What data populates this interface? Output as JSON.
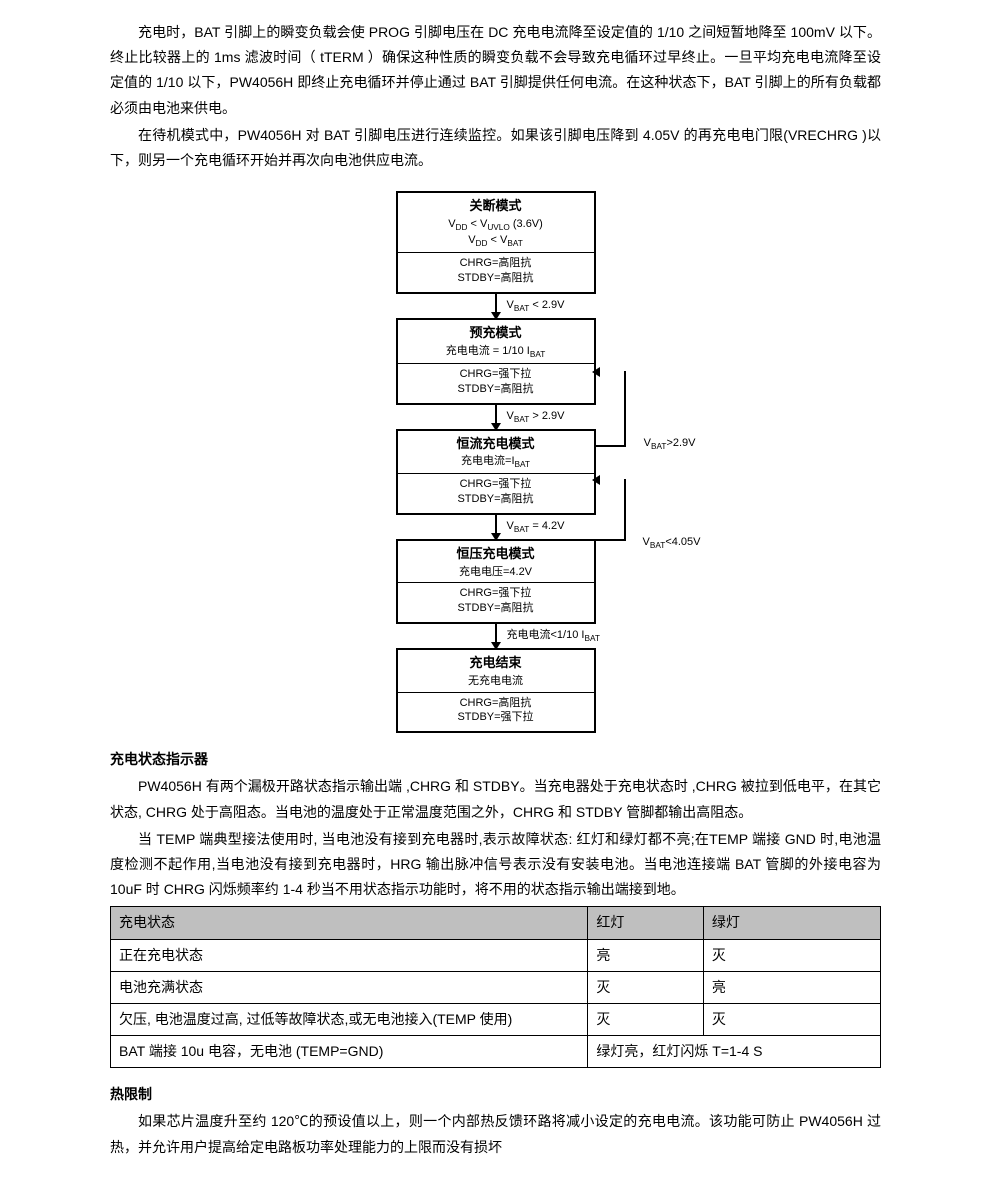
{
  "paragraphs": {
    "p1": "充电时，BAT 引脚上的瞬变负载会使 PROG 引脚电压在 DC 充电电流降至设定值的 1/10 之间短暂地降至 100mV 以下。终止比较器上的 1ms 滤波时间（ tTERM ）确保这种性质的瞬变负载不会导致充电循环过早终止。一旦平均充电电流降至设定值的 1/10 以下，PW4056H 即终止充电循环并停止通过 BAT 引脚提供任何电流。在这种状态下，BAT 引脚上的所有负载都必须由电池来供电。",
    "p2": "在待机模式中，PW4056H 对 BAT 引脚电压进行连续监控。如果该引脚电压降到 4.05V 的再充电电门限(VRECHRG )以下，则另一个充电循环开始并再次向电池供应电流。",
    "p3": "PW4056H 有两个漏极开路状态指示输出端 ,CHRG 和 STDBY。当充电器处于充电状态时 ,CHRG 被拉到低电平，在其它状态, CHRG 处于高阻态。当电池的温度处于正常温度范围之外，CHRG 和 STDBY 管脚都输出高阻态。",
    "p4": "当 TEMP 端典型接法使用时, 当电池没有接到充电器时,表示故障状态: 红灯和绿灯都不亮;在TEMP 端接 GND 时,电池温度检测不起作用,当电池没有接到充电器时，HRG 输出脉冲信号表示没有安装电池。当电池连接端 BAT 管脚的外接电容为 10uF 时 CHRG 闪烁频率约 1-4 秒当不用状态指示功能时，将不用的状态指示输出端接到地。",
    "p5": "如果芯片温度升至约 120℃的预设值以上，则一个内部热反馈环路将减小设定的充电电流。该功能可防止 PW4056H 过热，并允许用户提高给定电路板功率处理能力的上限而没有损坏"
  },
  "sections": {
    "s1": "充电状态指示器",
    "s2": "热限制"
  },
  "flowchart": {
    "nodes": [
      {
        "title": "关断模式",
        "lines_top": [
          "V_DD < V_UVLO (3.6V)",
          "V_DD < V_BAT"
        ],
        "lines_bot": [
          "CHRG=高阻抗",
          "STDBY=高阻抗"
        ]
      },
      {
        "title": "预充模式",
        "lines_top": [
          "充电电流 = 1/10 I_BAT"
        ],
        "lines_bot": [
          "CHRG=强下拉",
          "STDBY=高阻抗"
        ]
      },
      {
        "title": "恒流充电模式",
        "lines_top": [
          "充电电流=I_BAT"
        ],
        "lines_bot": [
          "CHRG=强下拉",
          "STDBY=高阻抗"
        ]
      },
      {
        "title": "恒压充电模式",
        "lines_top": [
          "充电电压=4.2V"
        ],
        "lines_bot": [
          "CHRG=强下拉",
          "STDBY=高阻抗"
        ]
      },
      {
        "title": "充电结束",
        "lines_top": [
          "无充电电流"
        ],
        "lines_bot": [
          "CHRG=高阻抗",
          "STDBY=强下拉"
        ]
      }
    ],
    "arrow_labels": [
      "V_BAT < 2.9V",
      "V_BAT > 2.9V",
      "V_BAT = 4.2V",
      "充电电流<1/10 I_BAT"
    ],
    "feedback_labels": [
      "V_BAT>2.9V",
      "V_BAT<4.05V"
    ],
    "colors": {
      "border": "#000000",
      "text": "#000000"
    }
  },
  "table": {
    "headers": [
      "充电状态",
      "红灯",
      "绿灯"
    ],
    "col_widths": [
      "62%",
      "15%",
      "23%"
    ],
    "rows": [
      [
        "正在充电状态",
        "亮",
        "灭"
      ],
      [
        "电池充满状态",
        "灭",
        "亮"
      ],
      [
        "欠压, 电池温度过高, 过低等故障状态,或无电池接入(TEMP 使用)",
        "灭",
        "灭"
      ]
    ],
    "last_row": {
      "c0": "BAT 端接 10u 电容，无电池   (TEMP=GND)",
      "c1": "绿灯亮，红灯闪烁 T=1-4 S"
    },
    "header_bg": "#bfbfbf"
  }
}
